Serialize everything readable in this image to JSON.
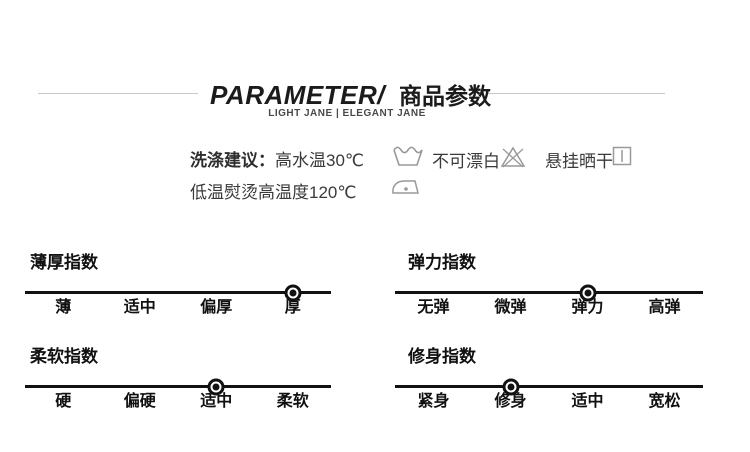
{
  "header": {
    "title_en": "PARAMETER/",
    "title_zh": "商品参数",
    "subtitle": "LIGHT JANE | ELEGANT JANE"
  },
  "care": {
    "label": "洗涤建议：",
    "wash_temp": "高水温30℃",
    "no_bleach": "不可漂白",
    "hang_dry": "悬挂晒干",
    "iron_note": "低温熨烫高温度120℃"
  },
  "icons": {
    "wash": "wash-tub-icon",
    "no_bleach": "no-bleach-icon",
    "hang_dry": "hang-dry-icon",
    "iron": "iron-icon"
  },
  "scales": [
    {
      "title": "薄厚指数",
      "labels": [
        "薄",
        "适中",
        "偏厚",
        "厚"
      ],
      "selected_index": 3,
      "selected_label": "厚"
    },
    {
      "title": "弹力指数",
      "labels": [
        "无弹",
        "微弹",
        "弹力",
        "高弹"
      ],
      "selected_index": 2,
      "selected_label": "弹力"
    },
    {
      "title": "柔软指数",
      "labels": [
        "硬",
        "偏硬",
        "适中",
        "柔软"
      ],
      "selected_index": 2,
      "selected_label": "适中"
    },
    {
      "title": "修身指数",
      "labels": [
        "紧身",
        "修身",
        "适中",
        "宽松"
      ],
      "selected_index": 1,
      "selected_label": "修身"
    }
  ],
  "colors": {
    "text": "#1b1b1b",
    "care_text": "#3a3a3a",
    "icon_gray": "#999999",
    "divider": "#c9c9c9",
    "scale_line": "#111111"
  }
}
